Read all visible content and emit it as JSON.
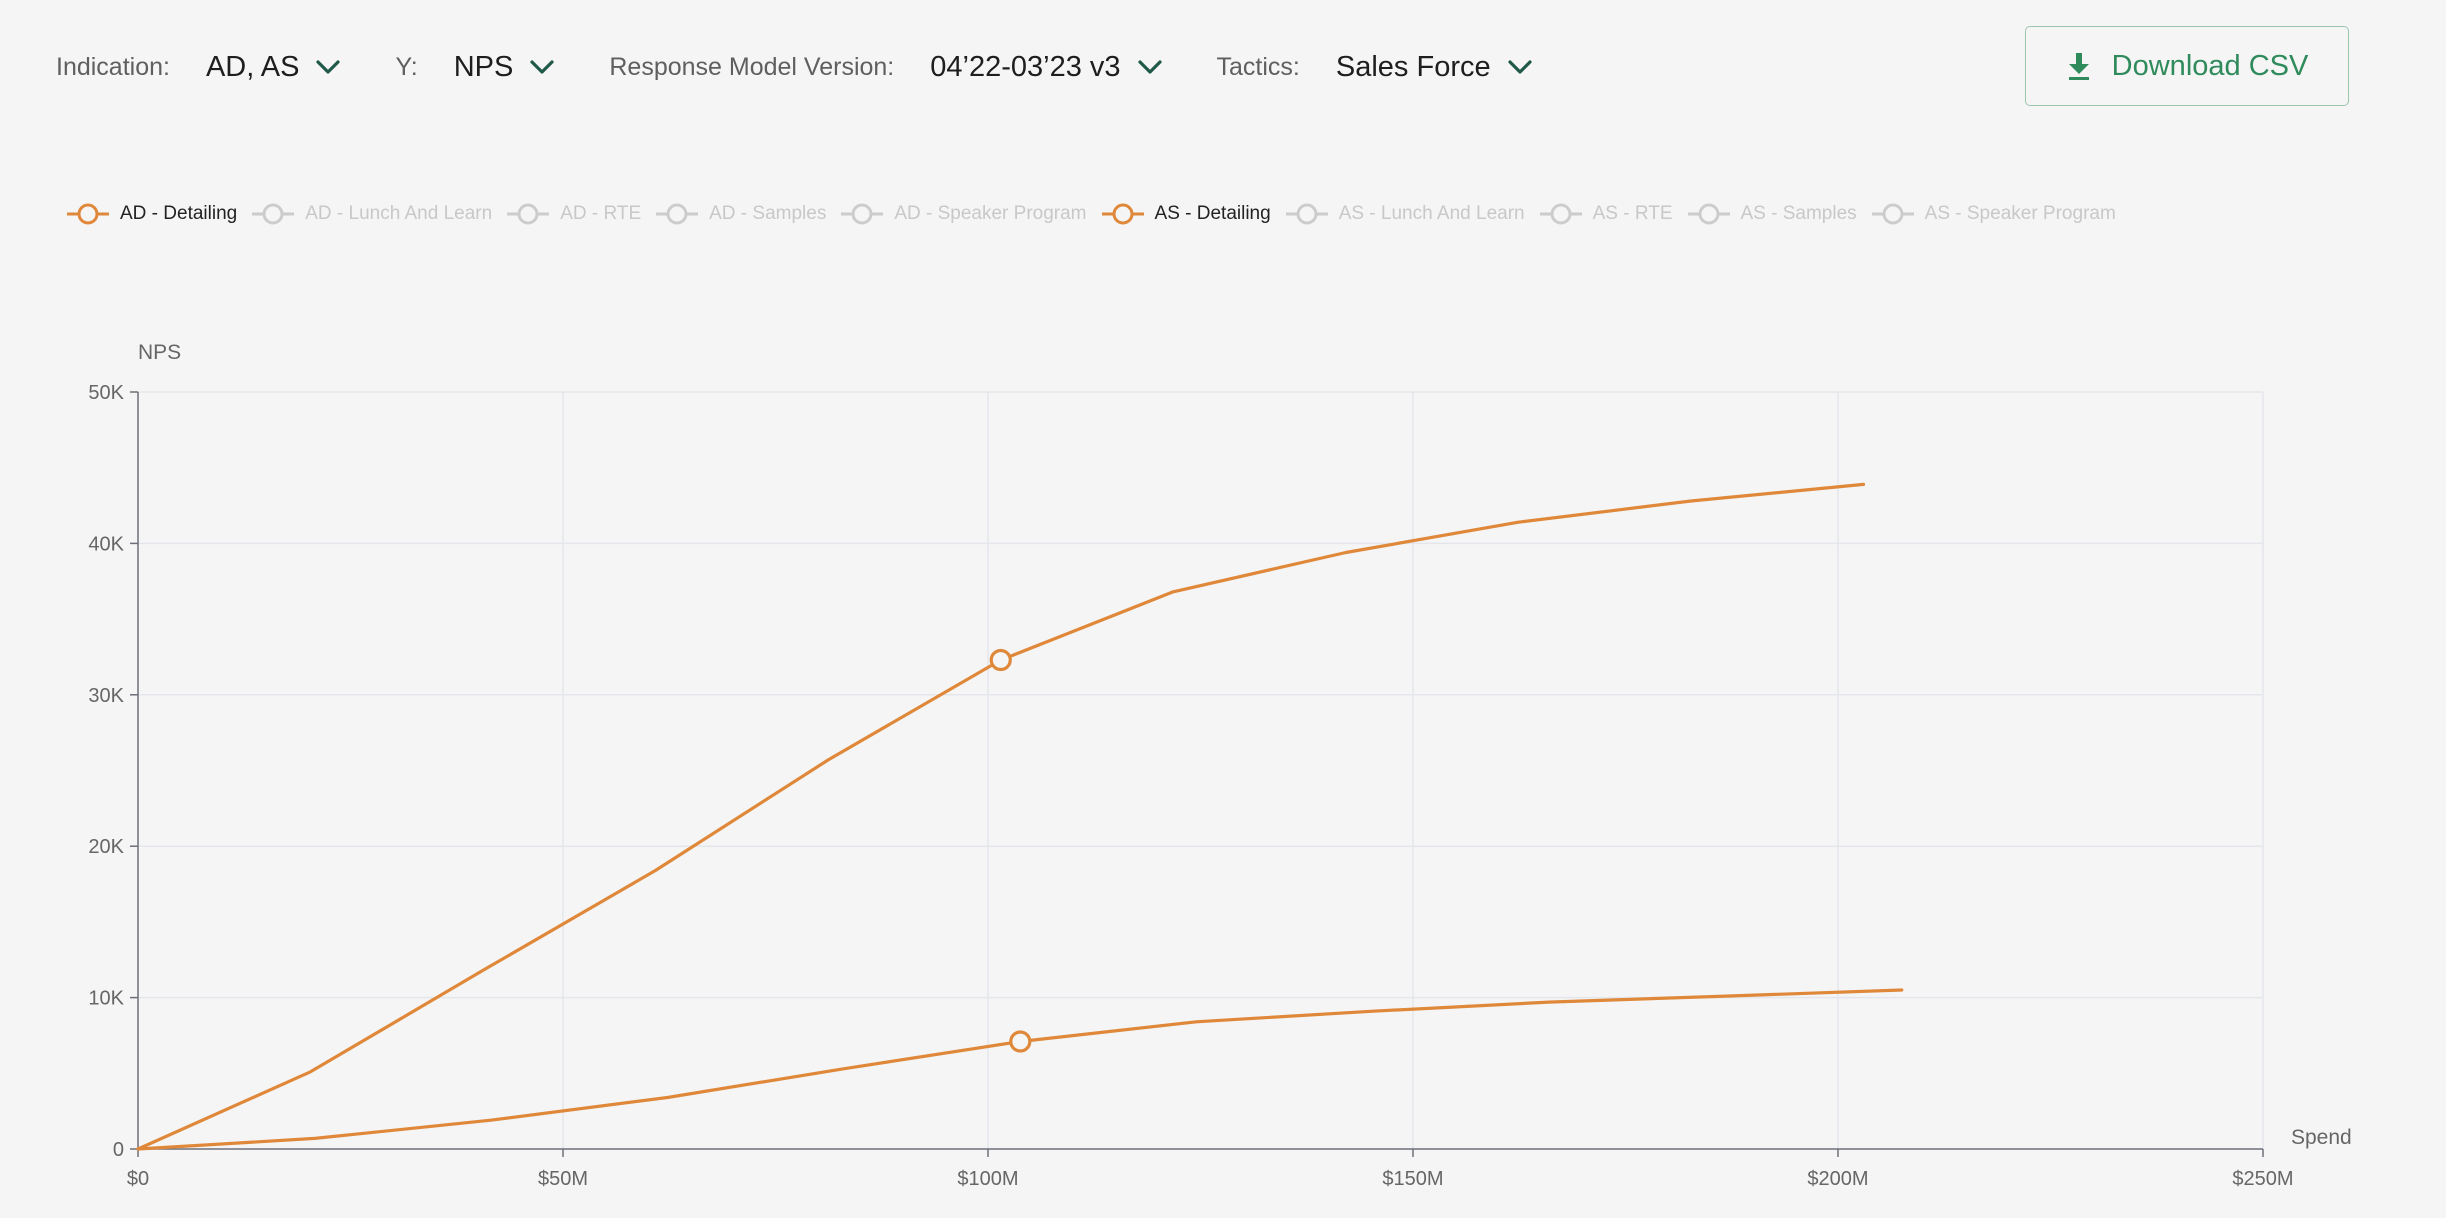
{
  "filters": [
    {
      "label": "Indication:",
      "value": "AD, AS"
    },
    {
      "label": "Y:",
      "value": "NPS"
    },
    {
      "label": "Response Model Version:",
      "value": "04’22-03’23 v3"
    },
    {
      "label": "Tactics:",
      "value": "Sales Force"
    }
  ],
  "download": {
    "label": "Download CSV",
    "icon": "download-icon"
  },
  "colors": {
    "accent": "#e0883a",
    "inactive": "#cccccc",
    "button": "#2f8a5c",
    "chevron": "#1f5a48"
  },
  "legend": [
    {
      "label": "AD - Detailing",
      "active": true
    },
    {
      "label": "AD - Lunch And Learn",
      "active": false
    },
    {
      "label": "AD - RTE",
      "active": false
    },
    {
      "label": "AD - Samples",
      "active": false
    },
    {
      "label": "AD - Speaker Program",
      "active": false
    },
    {
      "label": "AS - Detailing",
      "active": true
    },
    {
      "label": "AS - Lunch And Learn",
      "active": false
    },
    {
      "label": "AS - RTE",
      "active": false
    },
    {
      "label": "AS - Samples",
      "active": false
    },
    {
      "label": "AS - Speaker Program",
      "active": false
    }
  ],
  "chart_data": {
    "type": "line",
    "xlabel": "Spend",
    "ylabel": "NPS",
    "xlim": [
      0,
      250000000
    ],
    "ylim": [
      0,
      50000
    ],
    "xticks": [
      0,
      50000000,
      100000000,
      150000000,
      200000000,
      250000000
    ],
    "xtick_labels": [
      "$0",
      "$50M",
      "$100M",
      "$150M",
      "$200M",
      "$250M"
    ],
    "yticks": [
      0,
      10000,
      20000,
      30000,
      40000,
      50000
    ],
    "ytick_labels": [
      "0",
      "10K",
      "20K",
      "30K",
      "40K",
      "50K"
    ],
    "grid": true,
    "legend_position": "top-left",
    "series": [
      {
        "name": "AD - Detailing",
        "x": [
          0,
          20300000,
          40600000,
          60900000,
          81200000,
          101500000,
          121800000,
          142100000,
          162400000,
          182700000,
          203000000
        ],
        "y": [
          0,
          5100,
          11800,
          18400,
          25700,
          32300,
          36800,
          39400,
          41400,
          42800,
          43900
        ],
        "marker": {
          "x": 101500000,
          "y": 32300
        }
      },
      {
        "name": "AS - Detailing",
        "x": [
          0,
          20800000,
          41500000,
          62300000,
          83000000,
          103800000,
          124500000,
          145300000,
          166000000,
          186800000,
          207500000
        ],
        "y": [
          0,
          700,
          1900,
          3400,
          5300,
          7100,
          8400,
          9100,
          9700,
          10100,
          10500
        ],
        "marker": {
          "x": 103800000,
          "y": 7100
        }
      }
    ]
  }
}
